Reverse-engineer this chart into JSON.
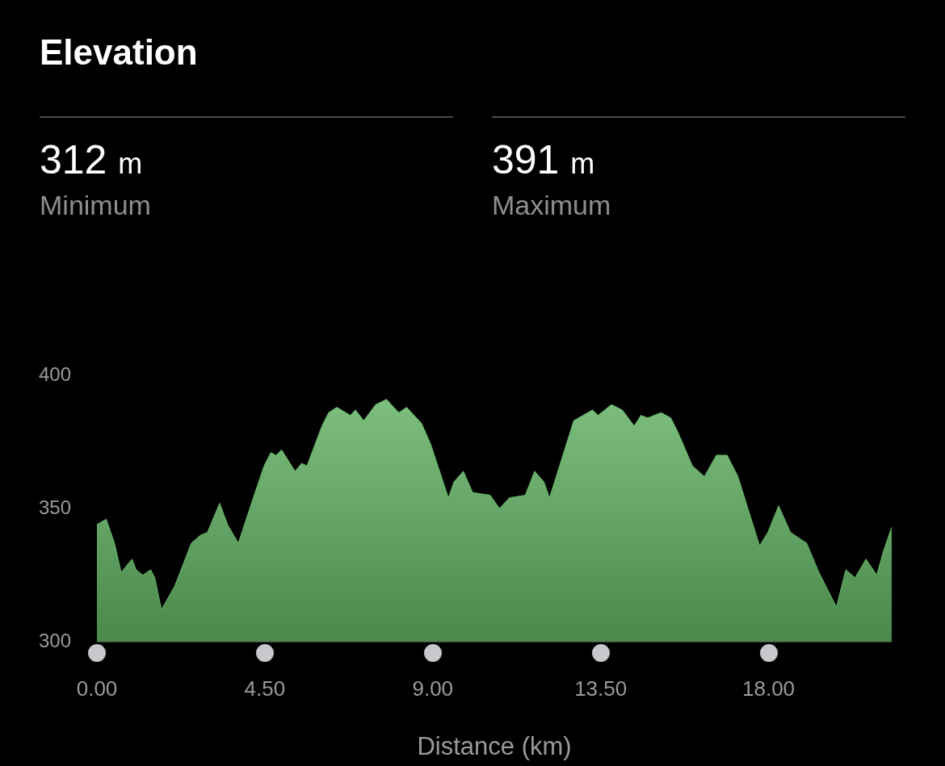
{
  "chart_data": {
    "type": "area",
    "title": "Elevation",
    "xlabel": "Distance (km)",
    "annotations": [
      "312 m",
      "Minimum",
      "391 m",
      "Maximum"
    ],
    "x": [
      0,
      0.25,
      0.47,
      0.65,
      0.94,
      1.05,
      1.23,
      1.44,
      1.55,
      1.73,
      2.09,
      2.53,
      2.78,
      2.96,
      3.29,
      3.5,
      3.79,
      4.19,
      4.48,
      4.66,
      4.8,
      4.95,
      5.13,
      5.31,
      5.49,
      5.63,
      6.03,
      6.21,
      6.43,
      6.79,
      6.93,
      7.15,
      7.47,
      7.76,
      8.09,
      8.3,
      8.7,
      8.95,
      9.42,
      9.57,
      9.82,
      10.07,
      10.54,
      10.79,
      11.05,
      11.48,
      11.73,
      11.98,
      12.13,
      12.78,
      13.28,
      13.43,
      13.79,
      14.08,
      14.4,
      14.58,
      14.76,
      15.12,
      15.38,
      15.56,
      15.96,
      16.28,
      16.6,
      16.89,
      17.18,
      17.76,
      17.98,
      18.27,
      18.59,
      19.02,
      19.35,
      19.82,
      20.07,
      20.32,
      20.61,
      20.9,
      21.08,
      21.3
    ],
    "series": [
      {
        "color": "#63b565",
        "values": [
          344,
          346,
          337,
          326,
          331,
          327,
          325,
          327,
          324,
          312,
          321,
          337,
          340,
          341,
          352,
          344,
          337,
          354,
          366,
          371,
          370,
          372,
          368,
          364,
          367,
          366,
          381,
          386,
          388,
          385,
          387,
          383,
          389,
          391,
          386,
          388,
          382,
          374,
          354,
          360,
          364,
          356,
          355,
          350,
          354,
          355,
          364,
          360,
          354,
          383,
          387,
          385,
          389,
          387,
          381,
          385,
          384,
          386,
          384,
          379,
          366,
          362,
          370,
          370,
          362,
          336,
          341,
          351,
          341,
          337,
          326,
          313,
          327,
          324,
          331,
          325,
          334,
          343
        ]
      }
    ],
    "xlim": [
      0,
      21.3
    ],
    "ylim": [
      300,
      400
    ],
    "yticks": [
      300,
      350,
      400
    ],
    "xticks": [
      {
        "value": 0,
        "label": "0.00"
      },
      {
        "value": 4.5,
        "label": "4.50"
      },
      {
        "value": 9,
        "label": "9.00"
      },
      {
        "value": 13.5,
        "label": "13.50"
      },
      {
        "value": 18,
        "label": "18.00"
      }
    ],
    "grid": false,
    "legend": false,
    "marker": "none"
  }
}
